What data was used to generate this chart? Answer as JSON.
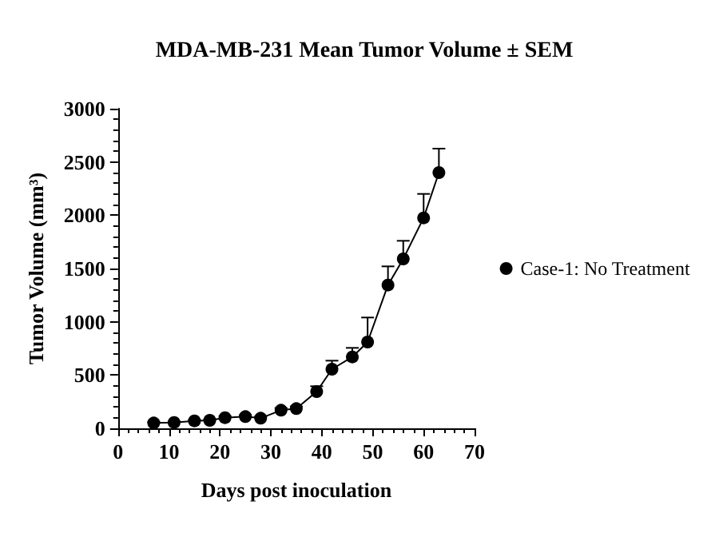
{
  "chart_data": {
    "type": "line",
    "title": "MDA-MB-231 Mean Tumor Volume ± SEM",
    "xlabel": "Days post inoculation",
    "ylabel": "Tumor Volume (mm³)",
    "x": [
      7,
      11,
      15,
      18,
      21,
      25,
      28,
      32,
      35,
      39,
      42,
      46,
      49,
      53,
      56,
      60,
      63
    ],
    "series": [
      {
        "name": "Case-1: No Treatment",
        "color": "#000000",
        "values": [
          50,
          55,
          70,
          75,
          100,
          110,
          95,
          170,
          185,
          345,
          555,
          670,
          810,
          1345,
          1590,
          1975,
          2400
        ],
        "errors": [
          10,
          10,
          10,
          10,
          15,
          15,
          15,
          20,
          20,
          50,
          80,
          85,
          230,
          175,
          170,
          225,
          225
        ]
      }
    ],
    "xlim": [
      0,
      70
    ],
    "xticks": [
      0,
      10,
      20,
      30,
      40,
      50,
      60,
      70
    ],
    "ylim": [
      0,
      3000
    ],
    "yticks": [
      0,
      500,
      1000,
      1500,
      2000,
      2500,
      3000
    ],
    "grid": false,
    "legend": "right",
    "marker": "circle",
    "line_style": "solid"
  }
}
